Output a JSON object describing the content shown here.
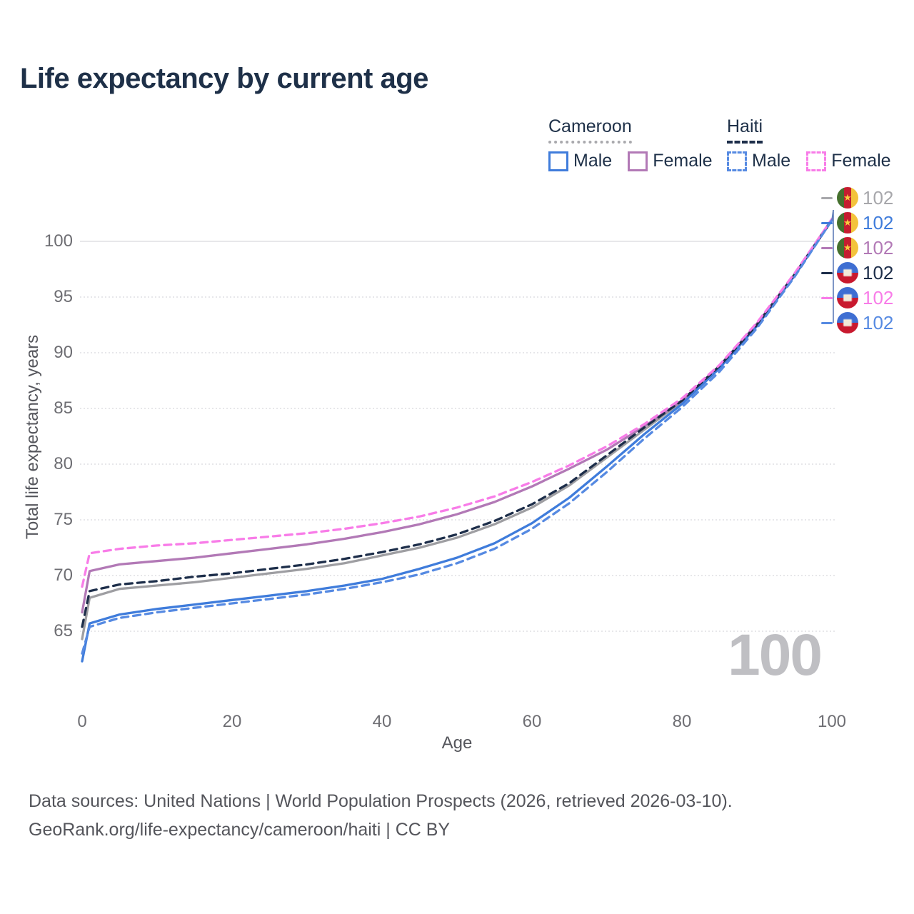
{
  "title": "Life expectancy by current age",
  "legend": {
    "groups": [
      {
        "label": "Cameroon",
        "line_style": "solid",
        "items": [
          {
            "label": "Male",
            "color": "#3f7cdb",
            "style": "solid"
          },
          {
            "label": "Female",
            "color": "#b279b6",
            "style": "solid"
          }
        ]
      },
      {
        "label": "Haiti",
        "line_style": "dashed",
        "items": [
          {
            "label": "Male",
            "color": "#568ae2",
            "style": "dashed"
          },
          {
            "label": "Female",
            "color": "#f87ce8",
            "style": "dashed"
          }
        ]
      }
    ]
  },
  "axes": {
    "y_title": "Total life expectancy, years",
    "x_title": "Age",
    "y_ticks": [
      "100",
      "95",
      "90",
      "85",
      "80",
      "75",
      "70",
      "65"
    ],
    "x_ticks": [
      "0",
      "20",
      "40",
      "60",
      "80",
      "100"
    ]
  },
  "age_counter": "100",
  "end_labels": [
    {
      "flag": "cameroon",
      "series": "Cameroon Total",
      "value": "102",
      "color": "#a7a7ab"
    },
    {
      "flag": "cameroon",
      "series": "Cameroon Male",
      "value": "102",
      "color": "#3f7cdb"
    },
    {
      "flag": "cameroon",
      "series": "Cameroon Female",
      "value": "102",
      "color": "#b279b6"
    },
    {
      "flag": "haiti",
      "series": "Haiti Total",
      "value": "102",
      "color": "#1d2e4a"
    },
    {
      "flag": "haiti",
      "series": "Haiti Female",
      "value": "102",
      "color": "#f87ce8"
    },
    {
      "flag": "haiti",
      "series": "Haiti Male",
      "value": "102",
      "color": "#568ae2"
    }
  ],
  "footer": {
    "line1": "Data sources: United Nations | World Population Prospects (2026, retrieved 2026-03-10).",
    "line2": "GeoRank.org/life-expectancy/cameroon/haiti | CC BY"
  },
  "colors": {
    "title": "#1e3048",
    "tick_label": "#6e6e73",
    "grid": "#dfdfe3",
    "watermark": "#bfbfc3",
    "leader_line": "#5f7cb8"
  },
  "chart_data": {
    "type": "line",
    "title": "Life expectancy by current age",
    "xlabel": "Age",
    "ylabel": "Total life expectancy, years",
    "xlim": [
      0,
      100
    ],
    "ylim": [
      62,
      103
    ],
    "grid": "horizontal",
    "legend_position": "top-right",
    "x": [
      0,
      1,
      5,
      10,
      15,
      20,
      25,
      30,
      35,
      40,
      45,
      50,
      55,
      60,
      65,
      70,
      75,
      80,
      85,
      90,
      95,
      100
    ],
    "series": [
      {
        "name": "Cameroon Total",
        "country": "Cameroon",
        "sex": "total",
        "color": "#9e9ea2",
        "dash": "solid",
        "values": [
          64.3,
          68.0,
          68.8,
          69.1,
          69.4,
          69.8,
          70.2,
          70.6,
          71.1,
          71.8,
          72.5,
          73.4,
          74.6,
          76.1,
          78.1,
          80.6,
          83.1,
          85.6,
          88.7,
          92.5,
          97.0,
          101.9
        ]
      },
      {
        "name": "Cameroon Female",
        "country": "Cameroon",
        "sex": "female",
        "color": "#b279b6",
        "dash": "solid",
        "values": [
          66.7,
          70.4,
          71.0,
          71.3,
          71.6,
          72.0,
          72.4,
          72.8,
          73.3,
          73.9,
          74.6,
          75.5,
          76.6,
          78.0,
          79.6,
          81.3,
          83.4,
          85.7,
          88.8,
          92.6,
          97.0,
          102.0
        ]
      },
      {
        "name": "Cameroon Male",
        "country": "Cameroon",
        "sex": "male",
        "color": "#3f7cdb",
        "dash": "solid",
        "values": [
          62.3,
          65.7,
          66.5,
          67.0,
          67.4,
          67.8,
          68.2,
          68.6,
          69.1,
          69.7,
          70.6,
          71.6,
          72.9,
          74.7,
          77.0,
          79.8,
          82.7,
          85.4,
          88.6,
          92.4,
          96.9,
          101.9
        ]
      },
      {
        "name": "Haiti Total",
        "country": "Haiti",
        "sex": "total",
        "color": "#1d2e4a",
        "dash": "dashed",
        "values": [
          65.4,
          68.6,
          69.2,
          69.5,
          69.9,
          70.2,
          70.6,
          71.0,
          71.5,
          72.1,
          72.8,
          73.7,
          74.9,
          76.4,
          78.3,
          80.8,
          83.3,
          85.7,
          88.8,
          92.5,
          97.0,
          101.9
        ]
      },
      {
        "name": "Haiti Female",
        "country": "Haiti",
        "sex": "female",
        "color": "#f87ce8",
        "dash": "dashed",
        "values": [
          69.0,
          72.0,
          72.4,
          72.7,
          72.9,
          73.2,
          73.5,
          73.8,
          74.2,
          74.7,
          75.3,
          76.1,
          77.1,
          78.4,
          79.9,
          81.6,
          83.6,
          85.9,
          88.9,
          92.7,
          97.1,
          102.0
        ]
      },
      {
        "name": "Haiti Male",
        "country": "Haiti",
        "sex": "male",
        "color": "#568ae2",
        "dash": "dashed",
        "values": [
          63.0,
          65.4,
          66.2,
          66.7,
          67.1,
          67.5,
          67.9,
          68.3,
          68.8,
          69.4,
          70.1,
          71.1,
          72.4,
          74.2,
          76.5,
          79.3,
          82.3,
          85.1,
          88.3,
          92.2,
          96.8,
          101.9
        ]
      }
    ]
  }
}
